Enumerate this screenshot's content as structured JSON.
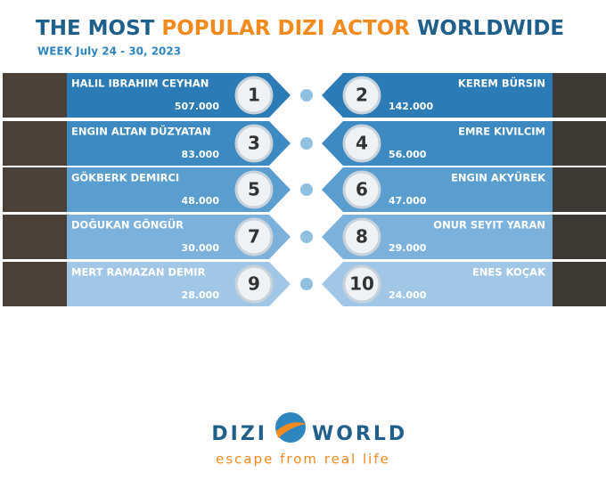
{
  "header": {
    "title": [
      "THE MOST",
      "POPULAR DIZI ACTOR",
      "WORLDWIDE"
    ],
    "week": "WEEK July 24 - 30, 2023"
  },
  "entries": [
    {
      "rank": 1,
      "name": "HALIL IBRAHIM CEYHAN",
      "value": "507.000"
    },
    {
      "rank": 2,
      "name": "KEREM BÜRSIN",
      "value": "142.000"
    },
    {
      "rank": 3,
      "name": "ENGIN ALTAN DÜZYATAN",
      "value": "83.000"
    },
    {
      "rank": 4,
      "name": "EMRE KIVILCIM",
      "value": "56.000"
    },
    {
      "rank": 5,
      "name": "GÖKBERK DEMIRCI",
      "value": "48.000"
    },
    {
      "rank": 6,
      "name": "ENGIN AKYÜREK",
      "value": "47.000"
    },
    {
      "rank": 7,
      "name": "DOĞUKAN GÖNGÜR",
      "value": "30.000"
    },
    {
      "rank": 8,
      "name": "ONUR SEYIT YARAN",
      "value": "29.000"
    },
    {
      "rank": 9,
      "name": "MERT RAMAZAN DEMIR",
      "value": "28.000"
    },
    {
      "rank": 10,
      "name": "ENES KOÇAK",
      "value": "24.000"
    }
  ],
  "logo": {
    "left": "DIZI",
    "right": "WORLD",
    "tagline": "escape from real life"
  }
}
